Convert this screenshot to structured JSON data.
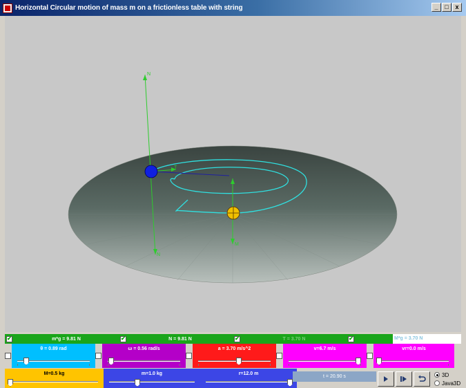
{
  "window": {
    "title": "Horizontal Circular motion of mass m on a frictionless table with string",
    "minimize": "_",
    "maximize": "□",
    "close": "x"
  },
  "scene": {
    "table_color": "#5a6a64",
    "string_color": "#30e0e0",
    "axis_color": "#2ecc2e",
    "mass_m_color": "#1020e0",
    "mass_M_color": "#f0c000",
    "axis_labels": [
      "N",
      "N",
      "T",
      "M"
    ]
  },
  "forces": [
    {
      "label": "m*g = 9.81 N",
      "checked": true,
      "color": "#1aa51a"
    },
    {
      "label": "N = 9.81 N",
      "checked": true,
      "color": "#1aa51a"
    },
    {
      "label": "T = 3.70 N",
      "checked": true,
      "color": "#1aa51a"
    },
    {
      "label": "M*g = 3.70 N",
      "checked": false,
      "color": "#1aa51a"
    }
  ],
  "sliders": [
    {
      "label": "θ = 0.89 rad",
      "color": "#00bfff",
      "checkbox": true,
      "value": 0.2
    },
    {
      "label": "ω = 0.56 rad/s",
      "color": "#b400c8",
      "checkbox": true,
      "value": 0.05
    },
    {
      "label": "a = 3.70 m/s^2",
      "color": "#ff1a1a",
      "checkbox": true,
      "value": 0.55
    },
    {
      "label": "v=6.7 m/s",
      "color": "#ff00ff",
      "checkbox": true,
      "value": 0.92
    },
    {
      "label": "vr=0.0 m/s",
      "color": "#ff00ff",
      "checkbox": true,
      "value": 0.0
    }
  ],
  "params": [
    {
      "label": "M=0.5 kg",
      "color": "#ffc400",
      "value": 0.0
    },
    {
      "label": "m=1.0 kg",
      "color": "#3c46e6",
      "value": 0.3
    },
    {
      "label": "r=12.0 m",
      "color": "#3c46e6",
      "value": 0.95
    }
  ],
  "time": {
    "label": "t = 20.90 s"
  },
  "controls": {
    "play": "play-icon",
    "step": "step-icon",
    "reset": "reset-icon"
  },
  "view_options": [
    {
      "label": "3D",
      "selected": true
    },
    {
      "label": "Java3D",
      "selected": false
    }
  ]
}
